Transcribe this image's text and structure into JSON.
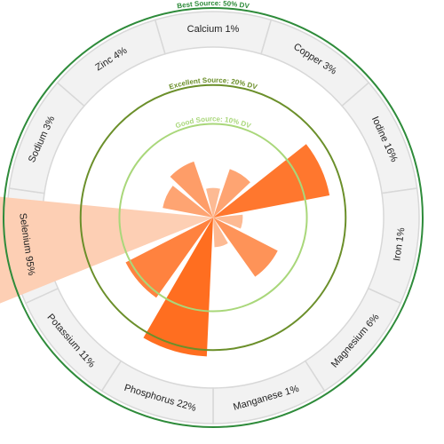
{
  "chart_data": {
    "type": "radial-bar",
    "unit": "% DV",
    "categories": [
      "Calcium",
      "Copper",
      "Iodine",
      "Iron",
      "Magnesium",
      "Manganese",
      "Phosphorus",
      "Potassium",
      "Selenium",
      "Sodium",
      "Zinc"
    ],
    "segment_labels": [
      "Calcium 1%",
      "Copper 3%",
      "Iodine 16%",
      "Iron 1%",
      "Magnesium 6%",
      "Manganese 1%",
      "Phosphorus 22%",
      "Potassium 11%",
      "Selenium 95%",
      "Sodium 3%",
      "Zinc 4%"
    ],
    "values": [
      1,
      3,
      16,
      1,
      6,
      1,
      22,
      11,
      95,
      3,
      4
    ],
    "reference_circles": [
      {
        "label": "Good Source: 10% DV",
        "value": 10,
        "color": "#a9d77a"
      },
      {
        "label": "Excellent Source: 20% DV",
        "value": 20,
        "color": "#6b8f2a"
      },
      {
        "label": "Best Source: 50% DV",
        "value": 50,
        "color": "#2e8b3a"
      }
    ],
    "colors": {
      "low": "#fdcfb4",
      "high": "#ff6a1a",
      "ring_fill": "#f2f2f2",
      "ring_divider": "#d8d8d8"
    }
  }
}
